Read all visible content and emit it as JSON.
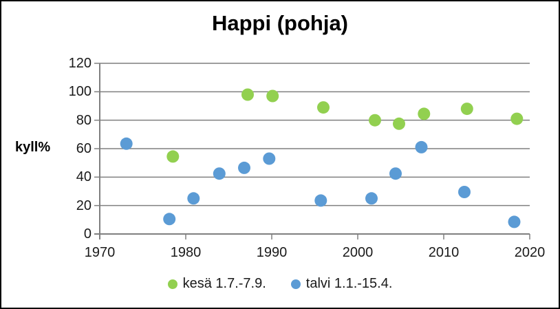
{
  "chart": {
    "border_color": "#000000",
    "background": "#ffffff"
  },
  "chart_data": {
    "type": "scatter",
    "title": "Happi (pohja)",
    "xlabel": "",
    "ylabel": "kyll%",
    "xlim": [
      1970,
      2020
    ],
    "ylim": [
      0,
      120
    ],
    "x_ticks": [
      1970,
      1980,
      1990,
      2000,
      2010,
      2020
    ],
    "y_ticks": [
      0,
      20,
      40,
      60,
      80,
      100,
      120
    ],
    "grid": true,
    "grid_color": "#7f7f7f",
    "axis_color": "#7f7f7f",
    "text_color": "#000000",
    "legend_position": "bottom",
    "marker_radius": 9,
    "series": [
      {
        "key": "summer",
        "name": "kesä 1.7.-7.9.",
        "color": "#92d050",
        "points": [
          [
            1978.5,
            54.5
          ],
          [
            1987.2,
            98
          ],
          [
            1990.1,
            97
          ],
          [
            1996.0,
            89
          ],
          [
            2002.0,
            80
          ],
          [
            2004.8,
            77.5
          ],
          [
            2007.7,
            84.5
          ],
          [
            2012.7,
            88
          ],
          [
            2018.5,
            81
          ]
        ]
      },
      {
        "key": "winter",
        "name": "talvi 1.1.-15.4.",
        "color": "#5b9bd5",
        "points": [
          [
            1973.1,
            63.5
          ],
          [
            1978.1,
            10.5
          ],
          [
            1980.9,
            25
          ],
          [
            1983.9,
            42.5
          ],
          [
            1986.8,
            46.5
          ],
          [
            1989.7,
            53
          ],
          [
            1995.7,
            23.5
          ],
          [
            2001.6,
            25
          ],
          [
            2004.4,
            42.5
          ],
          [
            2007.4,
            61
          ],
          [
            2012.4,
            29.5
          ],
          [
            2018.2,
            8.5
          ]
        ]
      }
    ]
  }
}
